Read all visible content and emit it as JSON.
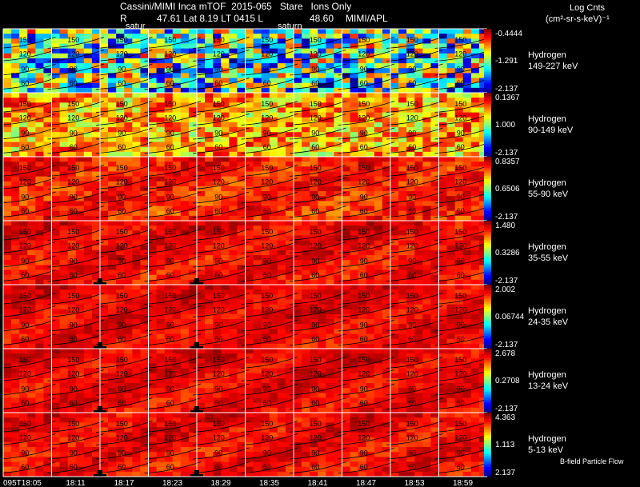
{
  "header": {
    "title_line": "Cassini/MIMI Inca mTOF  2015-065   Stare   Ions Only",
    "ephem_r_label": "R",
    "ephem_values": "47.61 Lat 8.19 LT 0415 L",
    "ephem_l_value": "48.60",
    "lab": "MIMI/APL",
    "saturn_labels": [
      "satur",
      "saturn"
    ],
    "units_title": "Log Cnts",
    "units": "(cm²-sr-s-keV)⁻¹"
  },
  "footer": {
    "legend_note": "B-field Particle Flow"
  },
  "chart_data": {
    "type": "heatmap",
    "title": "Cassini/MIMI Inca mTOF  2015-065   Stare   Ions Only",
    "x_time_labels": [
      "095T18:05",
      "18:11",
      "18:17",
      "18:23",
      "18:29",
      "18:35",
      "18:41",
      "18:47",
      "18:53",
      "18:59"
    ],
    "contour_labels": [
      "150",
      "120",
      "90",
      "60"
    ],
    "rows": [
      {
        "species": "Hydrogen",
        "energy": "149-227 keV",
        "scale_max": "-0.4444",
        "scale_mid": "-1.291",
        "scale_min": "-2.137",
        "level": 0.45,
        "noise": 0.4
      },
      {
        "species": "Hydrogen",
        "energy": "90-149 keV",
        "scale_max": "0.1367",
        "scale_mid": "1.000",
        "scale_min": "-2.137",
        "level": 0.72,
        "noise": 0.18
      },
      {
        "species": "Hydrogen",
        "energy": "55-90 keV",
        "scale_max": "0.8357",
        "scale_mid": "0.6506",
        "scale_min": "-2.137",
        "level": 0.86,
        "noise": 0.08
      },
      {
        "species": "Hydrogen",
        "energy": "35-55 keV",
        "scale_max": "1.480",
        "scale_mid": "0.3286",
        "scale_min": "-2.137",
        "level": 0.89,
        "noise": 0.06
      },
      {
        "species": "Hydrogen",
        "energy": "24-35 keV",
        "scale_max": "2.002",
        "scale_mid": "0.06744",
        "scale_min": "-2.137",
        "level": 0.9,
        "noise": 0.05
      },
      {
        "species": "Hydrogen",
        "energy": "13-24 keV",
        "scale_max": "2.678",
        "scale_mid": "0.2708",
        "scale_min": "-2.137",
        "level": 0.9,
        "noise": 0.05
      },
      {
        "species": "Hydrogen",
        "energy": "5-13 keV",
        "scale_max": "4.363",
        "scale_mid": "1.113",
        "scale_min": "2.137",
        "level": 0.89,
        "noise": 0.06
      }
    ],
    "colorbar": "jet",
    "grid": true
  }
}
